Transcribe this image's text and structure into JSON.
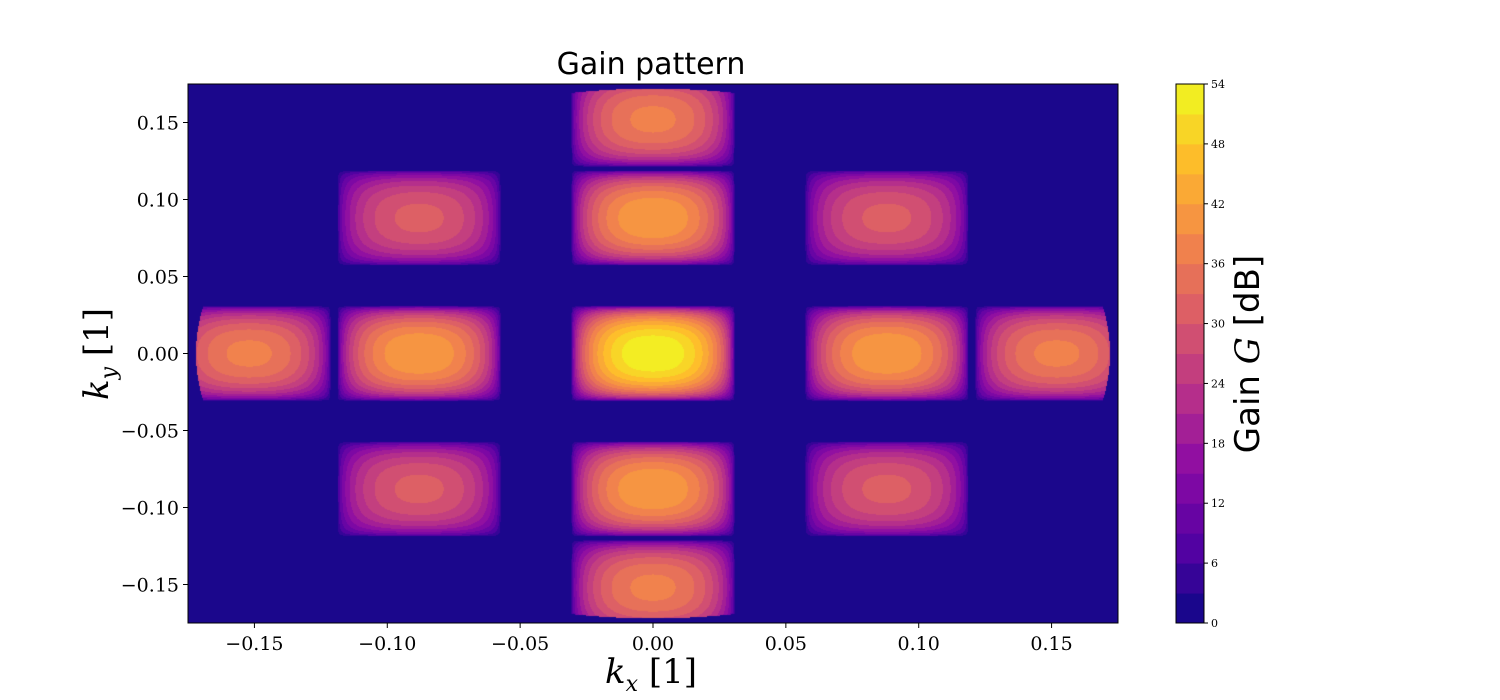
{
  "chart_data": {
    "type": "heatmap",
    "title": "Gain pattern",
    "xlabel": {
      "var": "k",
      "sub": "x",
      "unit": "[1]"
    },
    "ylabel": {
      "var": "k",
      "sub": "y",
      "unit": "[1]"
    },
    "xlim": [
      -0.175,
      0.175
    ],
    "ylim": [
      -0.175,
      0.175
    ],
    "xticks": [
      -0.15,
      -0.1,
      -0.05,
      0.0,
      0.05,
      0.1,
      0.15
    ],
    "xtick_labels": [
      "−0.15",
      "−0.10",
      "−0.05",
      "0.00",
      "0.05",
      "0.10",
      "0.15"
    ],
    "yticks": [
      0.15,
      0.1,
      0.05,
      0.0,
      -0.05,
      -0.1,
      -0.15
    ],
    "ytick_labels": [
      "0.15",
      "0.10",
      "0.05",
      "0.00",
      "−0.05",
      "−0.10",
      "−0.15"
    ],
    "colorbar": {
      "label_prefix": "Gain ",
      "label_var": "G",
      "label_unit": " [dB]",
      "range": [
        0,
        54
      ],
      "levels": 18,
      "ticks": [
        0,
        6,
        12,
        18,
        24,
        30,
        36,
        42,
        48,
        54
      ],
      "tick_labels": [
        "0",
        "6",
        "12",
        "18",
        "24",
        "30",
        "36",
        "42",
        "48",
        "54"
      ],
      "colormap": "plasma"
    },
    "grid": false,
    "visible_region": "ellipse, kx in [-0.172, 0.172], ky in [-0.172, 0.172]",
    "lobe_spacing": {
      "kx": 0.0615,
      "ky": 0.0615
    },
    "lobes": [
      {
        "kx": 0.0,
        "ky": 0.0,
        "peak_db": 54
      },
      {
        "kx": -0.088,
        "ky": 0.0,
        "peak_db": 42
      },
      {
        "kx": 0.088,
        "ky": 0.0,
        "peak_db": 42
      },
      {
        "kx": 0.0,
        "ky": 0.088,
        "peak_db": 42
      },
      {
        "kx": 0.0,
        "ky": -0.088,
        "peak_db": 42
      },
      {
        "kx": -0.152,
        "ky": 0.0,
        "peak_db": 37
      },
      {
        "kx": 0.152,
        "ky": 0.0,
        "peak_db": 37
      },
      {
        "kx": 0.0,
        "ky": 0.152,
        "peak_db": 37
      },
      {
        "kx": 0.0,
        "ky": -0.152,
        "peak_db": 37
      },
      {
        "kx": -0.088,
        "ky": 0.088,
        "peak_db": 31
      },
      {
        "kx": 0.088,
        "ky": 0.088,
        "peak_db": 31
      },
      {
        "kx": -0.088,
        "ky": -0.088,
        "peak_db": 31
      },
      {
        "kx": 0.088,
        "ky": -0.088,
        "peak_db": 31
      }
    ],
    "background_db": 0
  }
}
